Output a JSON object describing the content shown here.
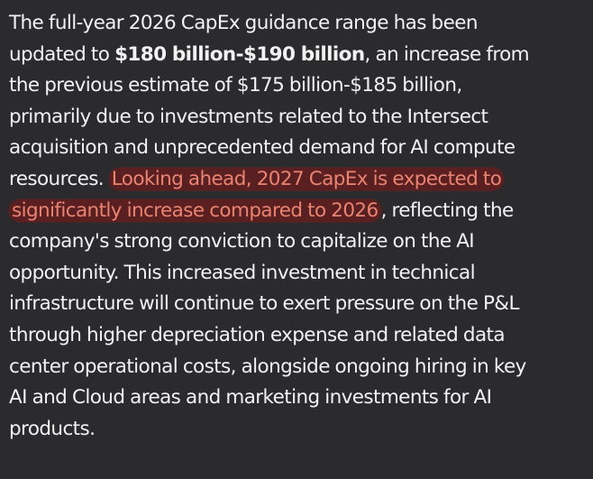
{
  "paragraph": {
    "l1": "The full-year 2026 CapEx guidance range has been",
    "l2a": "updated to ",
    "l2b": "$180 billion-$190 billion",
    "l2c": ", an increase from",
    "l3": "the previous estimate of $175 billion-$185 billion,",
    "l4": "primarily due to investments related to the Intersect",
    "l5": "acquisition and unprecedented demand for AI compute",
    "l6a": "resources. ",
    "l6b": "Looking ahead, 2027 CapEx is expected to",
    "l7a": "significantly increase compared to 2026",
    "l7b": ", reflecting the",
    "l8": "company's strong conviction to capitalize on the AI",
    "l9": "opportunity. This increased investment in technical",
    "l10": "infrastructure will continue to exert pressure on the P&L",
    "l11": "through higher depreciation expense and related data",
    "l12": "center operational costs, alongside ongoing hiring in key",
    "l13": "AI and Cloud areas and marketing investments for AI",
    "l14": "products."
  },
  "colors": {
    "background": "#2b2b2d",
    "text": "#f2f2f2",
    "highlight_text": "#e98472",
    "highlight_background": "#5a1f20"
  }
}
